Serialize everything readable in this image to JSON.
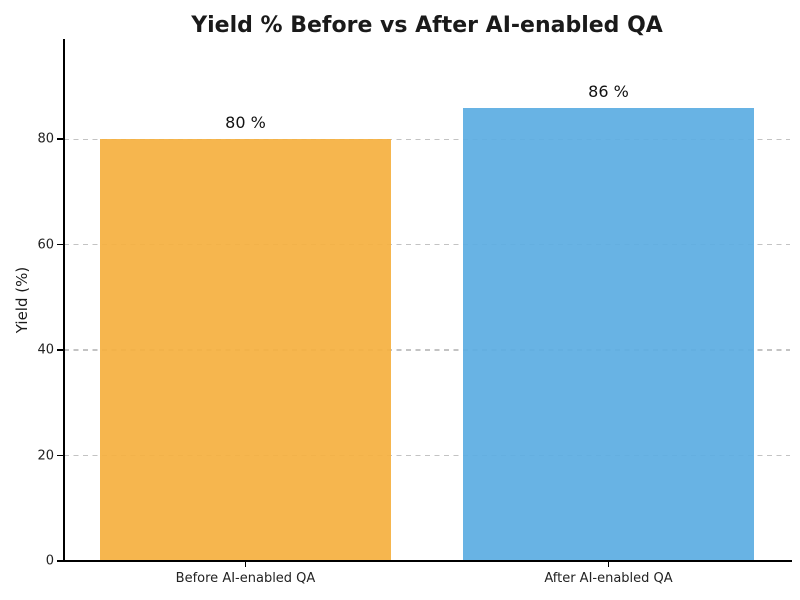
{
  "chart_data": {
    "type": "bar",
    "title": "Yield % Before vs After AI-enabled QA",
    "categories": [
      "Before AI-enabled QA",
      "After AI-enabled QA"
    ],
    "values": [
      80,
      86
    ],
    "bar_value_labels": [
      "80 %",
      "86 %"
    ],
    "xlabel": "",
    "ylabel": "Yield (%)",
    "ylim": [
      0,
      99
    ],
    "yticks": [
      0,
      20,
      40,
      60,
      80
    ],
    "bar_colors": [
      "#F5B041",
      "#5DADE2"
    ],
    "grid": {
      "axis": "y",
      "style": "dashed",
      "color": "#c3c3c3"
    },
    "legend": "none",
    "background_color": "#ffffff"
  }
}
